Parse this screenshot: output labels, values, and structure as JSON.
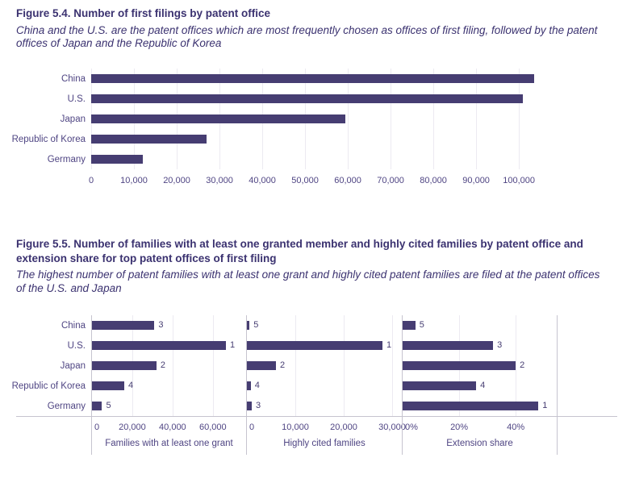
{
  "colors": {
    "bar": "#463d72",
    "heading_text": "#3b3270",
    "axis_text": "#4f4583",
    "gridline": "#eceaf1",
    "axis_line": "#c6c4cf",
    "background": "#ffffff"
  },
  "chart_data": [
    {
      "id": "figure-5-4",
      "type": "bar",
      "orientation": "horizontal",
      "title": "Figure 5.4. Number of first filings by patent office",
      "subtitle": "China and the U.S. are the patent offices which are most frequently chosen as offices of first filing, followed by the patent offices of Japan and the Republic of Korea",
      "categories": [
        "China",
        "U.S.",
        "Japan",
        "Republic of Korea",
        "Germany"
      ],
      "values": [
        103500,
        101000,
        59500,
        27000,
        12000
      ],
      "xlabel": "",
      "xlim": [
        0,
        114500
      ],
      "xticks": [
        0,
        10000,
        20000,
        30000,
        40000,
        50000,
        60000,
        70000,
        80000,
        90000,
        100000
      ],
      "xtick_labels": [
        "0",
        "10,000",
        "20,000",
        "30,000",
        "40,000",
        "50,000",
        "60,000",
        "70,000",
        "80,000",
        "90,000",
        "100,000"
      ],
      "grid": true,
      "legend": false
    },
    {
      "id": "figure-5-5",
      "type": "bar",
      "orientation": "horizontal",
      "title": "Figure 5.5. Number of families with at least one granted member and highly cited families by patent office and extension share for top patent offices of first filing",
      "subtitle": "The highest number of patent families with at least one grant and highly cited patent families are filed at the patent offices of the U.S. and Japan",
      "categories": [
        "China",
        "U.S.",
        "Japan",
        "Republic of Korea",
        "Germany"
      ],
      "grid": true,
      "legend": false,
      "panels": [
        {
          "xlabel": "Families with at least one grant",
          "values": [
            31000,
            66500,
            32000,
            16000,
            5000
          ],
          "bar_labels": [
            "3",
            "1",
            "2",
            "4",
            "5"
          ],
          "xlim": [
            0,
            76500
          ],
          "xticks": [
            0,
            20000,
            40000,
            60000
          ],
          "xtick_labels": [
            "0",
            "20,000",
            "40,000",
            "60,000"
          ]
        },
        {
          "xlabel": "Highly cited families",
          "values": [
            550,
            28000,
            6000,
            800,
            1000
          ],
          "bar_labels": [
            "5",
            "1",
            "2",
            "4",
            "3"
          ],
          "xlim": [
            0,
            32000
          ],
          "xticks": [
            0,
            10000,
            20000,
            30000
          ],
          "xtick_labels": [
            "0",
            "10,000",
            "20,000",
            "30,000"
          ]
        },
        {
          "xlabel": "Extension share",
          "values": [
            4.5,
            32,
            40,
            26,
            48
          ],
          "bar_labels": [
            "5",
            "3",
            "2",
            "4",
            "1"
          ],
          "xlim": [
            0,
            54.5
          ],
          "xticks": [
            0,
            20,
            40
          ],
          "xtick_labels": [
            "0%",
            "20%",
            "40%"
          ]
        }
      ]
    }
  ]
}
